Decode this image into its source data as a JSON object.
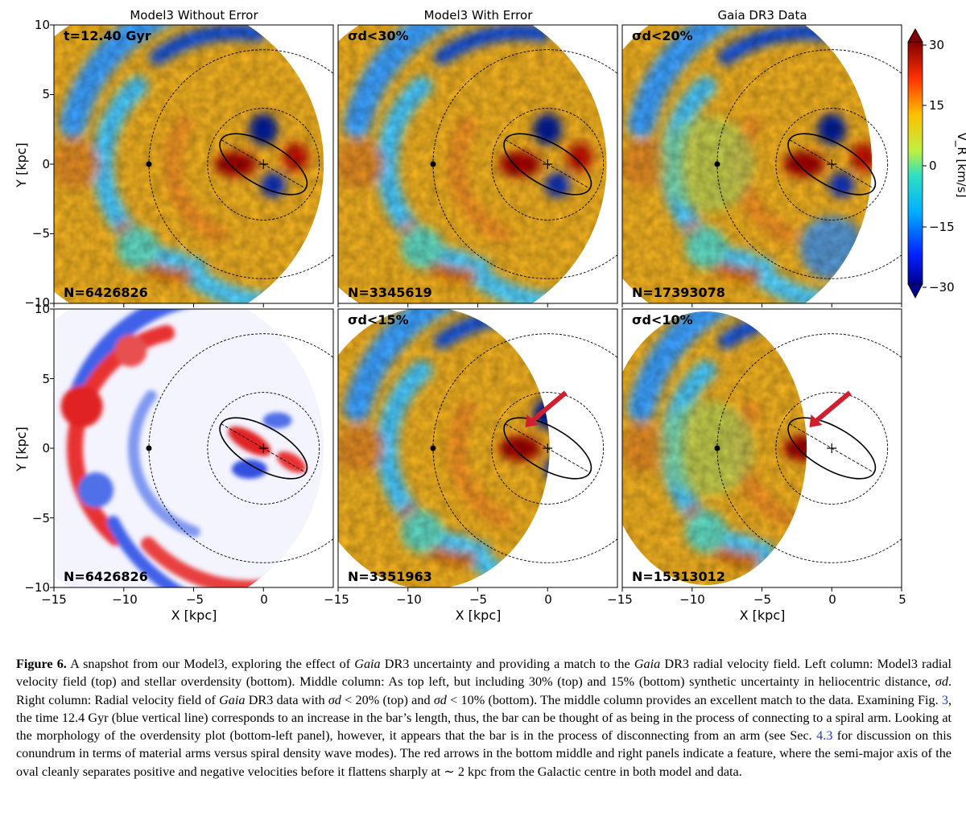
{
  "figure": {
    "column_titles": [
      "Model3 Without Error",
      "Model3 With Error",
      "Gaia DR3 Data"
    ],
    "panels": [
      {
        "id": "top-left",
        "tag": "t=12.40 Gyr",
        "n_label": "N=6426826",
        "colormap": "jet"
      },
      {
        "id": "top-middle",
        "tag": "σd<30%",
        "n_label": "N=3345619",
        "colormap": "jet"
      },
      {
        "id": "top-right",
        "tag": "σd<20%",
        "n_label": "N=17393078",
        "colormap": "jet"
      },
      {
        "id": "bottom-left",
        "tag": "",
        "n_label": "N=6426826",
        "colormap": "bwr"
      },
      {
        "id": "bottom-middle",
        "tag": "σd<15%",
        "n_label": "N=3351963",
        "colormap": "jet",
        "arrow": true
      },
      {
        "id": "bottom-right",
        "tag": "σd<10%",
        "n_label": "N=15313012",
        "colormap": "jet",
        "arrow": true
      }
    ],
    "axes": {
      "xlabel": "X [kpc]",
      "ylabel": "Y [kpc]",
      "x_ticks": [
        "−15",
        "−10",
        "−5",
        "0"
      ],
      "x_ticks_last_panel": [
        "−15",
        "−10",
        "−5",
        "0",
        "5"
      ],
      "y_ticks": [
        "10",
        "5",
        "0",
        "−5",
        "−10"
      ],
      "xlim": [
        -15,
        5
      ],
      "ylim": [
        -10,
        10
      ]
    },
    "colorbar": {
      "label": "V_R [km/s]",
      "ticks": [
        "30",
        "15",
        "0",
        "−15",
        "−30"
      ],
      "range": [
        -30,
        30
      ]
    }
  },
  "caption": {
    "label": "Figure 6.",
    "text_parts": [
      {
        "t": " A snapshot from our Model3, exploring the effect of "
      },
      {
        "t": "Gaia",
        "i": true
      },
      {
        "t": " DR3 uncertainty and providing a match to the "
      },
      {
        "t": "Gaia",
        "i": true
      },
      {
        "t": " DR3 radial velocity field. Left column: Model3 radial velocity field (top) and stellar overdensity (bottom). Middle column: As top left, but including 30% (top) and 15% (bottom) synthetic uncertainty in heliocentric distance, "
      },
      {
        "t": "σd",
        "i": true
      },
      {
        "t": ". Right column: Radial velocity field of "
      },
      {
        "t": "Gaia",
        "i": true
      },
      {
        "t": " DR3 data with "
      },
      {
        "t": "σd",
        "i": true
      },
      {
        "t": " < 20% (top) and "
      },
      {
        "t": "σd",
        "i": true
      },
      {
        "t": " < 10% (bottom). The middle column provides an excellent match to the data. Examining Fig. "
      },
      {
        "t": "3",
        "link": true
      },
      {
        "t": ", the time 12.4 Gyr (blue vertical line) corresponds to an increase in the bar’s length, thus, the bar can be thought of as being in the process of connecting to a spiral arm. Looking at the morphology of the overdensity plot (bottom-left panel), however, it appears that the bar is in the process of disconnecting from an arm (see Sec. "
      },
      {
        "t": "4.3",
        "link": true
      },
      {
        "t": " for discussion on this conundrum in terms of material arms versus spiral density wave modes). The red arrows in the bottom middle and right panels indicate a feature, where the semi-major axis of the oval cleanly separates positive and negative velocities before it flattens sharply at ∼ 2 kpc from the Galactic centre in both model and data."
      }
    ]
  }
}
